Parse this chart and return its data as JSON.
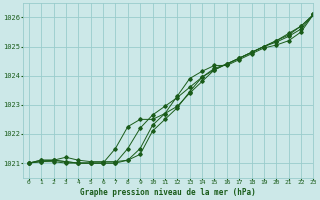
{
  "title": "Graphe pression niveau de la mer (hPa)",
  "bg_color": "#cce8e8",
  "grid_color": "#99cccc",
  "line_color": "#1a5c1a",
  "marker_color": "#1a5c1a",
  "xlim": [
    -0.5,
    23
  ],
  "ylim": [
    1020.5,
    1026.5
  ],
  "xticks": [
    0,
    1,
    2,
    3,
    4,
    5,
    6,
    7,
    8,
    9,
    10,
    11,
    12,
    13,
    14,
    15,
    16,
    17,
    18,
    19,
    20,
    21,
    22,
    23
  ],
  "yticks": [
    1021,
    1022,
    1023,
    1024,
    1025,
    1026
  ],
  "series1": [
    1021.0,
    1021.1,
    1021.1,
    1021.2,
    1021.1,
    1021.05,
    1021.05,
    1021.05,
    1021.1,
    1021.5,
    1022.3,
    1022.7,
    1023.3,
    1023.9,
    1024.15,
    1024.35,
    1024.35,
    1024.55,
    1024.75,
    1024.95,
    1025.05,
    1025.2,
    1025.5,
    1026.1
  ],
  "series2": [
    1021.0,
    1021.1,
    1021.1,
    1021.05,
    1021.0,
    1021.0,
    1021.0,
    1021.0,
    1021.1,
    1021.3,
    1022.1,
    1022.5,
    1022.9,
    1023.45,
    1023.95,
    1024.25,
    1024.4,
    1024.6,
    1024.8,
    1025.0,
    1025.15,
    1025.35,
    1025.6,
    1026.1
  ],
  "series3": [
    1021.0,
    1021.05,
    1021.1,
    1021.05,
    1021.0,
    1021.0,
    1021.0,
    1021.0,
    1021.5,
    1022.2,
    1022.65,
    1022.95,
    1023.25,
    1023.6,
    1023.95,
    1024.2,
    1024.4,
    1024.6,
    1024.8,
    1025.0,
    1025.2,
    1025.4,
    1025.7,
    1026.1
  ],
  "series4": [
    1021.0,
    1021.05,
    1021.05,
    1021.0,
    1021.0,
    1021.0,
    1021.0,
    1021.5,
    1022.25,
    1022.5,
    1022.5,
    1022.7,
    1022.95,
    1023.4,
    1023.8,
    1024.2,
    1024.4,
    1024.6,
    1024.8,
    1025.0,
    1025.2,
    1025.45,
    1025.7,
    1026.1
  ]
}
